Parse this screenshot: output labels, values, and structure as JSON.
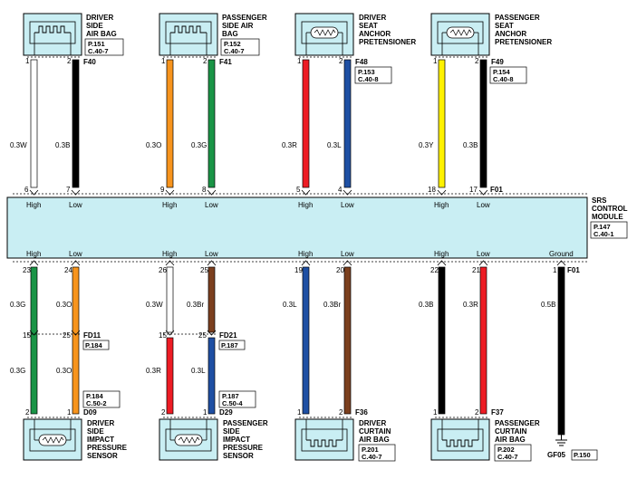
{
  "top_components": [
    {
      "name_lines": [
        "DRIVER",
        "SIDE",
        "AIR BAG"
      ],
      "connector": "F40",
      "ref": [
        "P.151",
        "C.40-7"
      ],
      "symbol": "squib"
    },
    {
      "name_lines": [
        "PASSENGER",
        "SIDE AIR",
        "BAG"
      ],
      "connector": "F41",
      "ref": [
        "P.152",
        "C.40-7"
      ],
      "symbol": "squib"
    },
    {
      "name_lines": [
        "DRIVER",
        "SEAT",
        "ANCHOR",
        "PRETENSIONER"
      ],
      "connector": "F48",
      "ref": [
        "P.153",
        "C.40-8"
      ],
      "symbol": "resistor"
    },
    {
      "name_lines": [
        "PASSENGER",
        "SEAT",
        "ANCHOR",
        "PRETENSIONER"
      ],
      "connector": "F49",
      "ref": [
        "P.154",
        "C.40-8"
      ],
      "symbol": "resistor"
    }
  ],
  "top_wires": [
    {
      "pin_top": "1",
      "pin_mod": "6",
      "label": "0.3W",
      "color": "#ffffff",
      "mod_label": "High"
    },
    {
      "pin_top": "2",
      "pin_mod": "7",
      "label": "0.3B",
      "color": "#000000",
      "mod_label": "Low"
    },
    {
      "pin_top": "1",
      "pin_mod": "9",
      "label": "0.3O",
      "color": "#f7941d",
      "mod_label": "High"
    },
    {
      "pin_top": "2",
      "pin_mod": "8",
      "label": "0.3G",
      "color": "#1a9446",
      "mod_label": "Low"
    },
    {
      "pin_top": "1",
      "pin_mod": "5",
      "label": "0.3R",
      "color": "#ed1c24",
      "mod_label": "High"
    },
    {
      "pin_top": "2",
      "pin_mod": "4",
      "label": "0.3L",
      "color": "#1e4fa3",
      "mod_label": "Low"
    },
    {
      "pin_top": "1",
      "pin_mod": "18",
      "label": "0.3Y",
      "color": "#fff200",
      "mod_label": "High"
    },
    {
      "pin_top": "2",
      "pin_mod": "17",
      "label": "0.3B",
      "color": "#000000",
      "mod_label": "Low"
    }
  ],
  "module": {
    "name_lines": [
      "SRS",
      "CONTROL",
      "MODULE"
    ],
    "ref": [
      "P.147",
      "C.40-1"
    ],
    "connector_top": "F01",
    "connector_bottom": "F01",
    "fill": "#c9eef3"
  },
  "bottom_wires": [
    {
      "mod_label": "High",
      "pin_mod": "23",
      "label_upper": "0.3G",
      "inline_pin": "15",
      "label_lower": "0.3G",
      "pin_comp": "2",
      "color": "#1a9446"
    },
    {
      "mod_label": "Low",
      "pin_mod": "24",
      "label_upper": "0.3O",
      "inline_pin": "25",
      "label_lower": "0.3O",
      "pin_comp": "1",
      "color": "#f7941d"
    },
    {
      "mod_label": "High",
      "pin_mod": "26",
      "label_upper": "0.3W",
      "inline_pin": "15",
      "label_lower": "0.3R",
      "pin_comp": "2",
      "color_upper": "#ffffff",
      "color": "#ed1c24"
    },
    {
      "mod_label": "Low",
      "pin_mod": "25",
      "label_upper": "0.3Br",
      "inline_pin": "25",
      "label_lower": "0.3L",
      "pin_comp": "1",
      "color_upper": "#7b3f1e",
      "color": "#1e4fa3"
    },
    {
      "mod_label": "High",
      "pin_mod": "19",
      "label": "0.3L",
      "pin_comp": "1",
      "color": "#1e4fa3"
    },
    {
      "mod_label": "Low",
      "pin_mod": "20",
      "label": "0.3Br",
      "pin_comp": "2",
      "color": "#7b3f1e"
    },
    {
      "mod_label": "High",
      "pin_mod": "22",
      "label": "0.3B",
      "pin_comp": "1",
      "color": "#000000"
    },
    {
      "mod_label": "Low",
      "pin_mod": "21",
      "label": "0.3R",
      "pin_comp": "2",
      "color": "#ed1c24"
    },
    {
      "mod_label": "Ground",
      "pin_mod": "1",
      "label": "0.5B",
      "color": "#000000"
    }
  ],
  "inline_connectors": [
    {
      "connector": "FD11",
      "ref": "P.184"
    },
    {
      "connector": "FD21",
      "ref": "P.187"
    }
  ],
  "bottom_components": [
    {
      "name_lines": [
        "DRIVER",
        "SIDE",
        "IMPACT",
        "PRESSURE",
        "SENSOR"
      ],
      "connector": "D09",
      "ref": [
        "P.184",
        "C.50-2"
      ],
      "symbol": "resistor"
    },
    {
      "name_lines": [
        "PASSENGER",
        "SIDE",
        "IMPACT",
        "PRESSURE",
        "SENSOR"
      ],
      "connector": "D29",
      "ref": [
        "P.187",
        "C.50-4"
      ],
      "symbol": "resistor"
    },
    {
      "name_lines": [
        "DRIVER",
        "CURTAIN",
        "AIR BAG"
      ],
      "connector": "F36",
      "ref": [
        "P.201",
        "C.40-7"
      ],
      "symbol": "squib"
    },
    {
      "name_lines": [
        "PASSENGER",
        "CURTAIN",
        "AIR BAG"
      ],
      "connector": "F37",
      "ref": [
        "P.202",
        "C.40-7"
      ],
      "symbol": "squib"
    }
  ],
  "ground": {
    "name": "GF05",
    "ref": "P.150"
  }
}
